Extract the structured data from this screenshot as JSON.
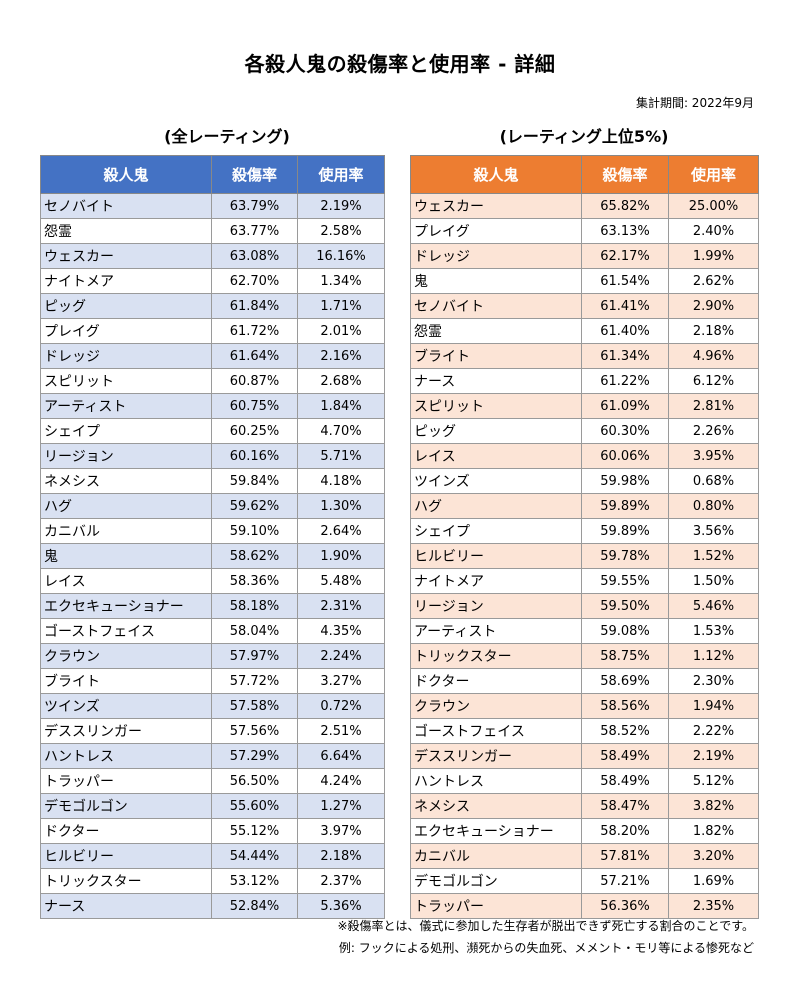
{
  "title": "各殺人鬼の殺傷率と使用率 - 詳細",
  "period": "集計期間: 2022年9月",
  "notes": [
    "※殺傷率とは、儀式に参加した生存者が脱出できず死亡する割合のことです。",
    "例: フックによる処刑、瀕死からの失血死、メメント・モリ等による惨死など"
  ],
  "tables": [
    {
      "subtitle": "(全レーティング)",
      "header_color": "#4472c4",
      "stripe_color": "#d9e1f2",
      "headers": [
        "殺人鬼",
        "殺傷率",
        "使用率"
      ],
      "rows": [
        [
          "セノバイト",
          "63.79%",
          "2.19%"
        ],
        [
          "怨霊",
          "63.77%",
          "2.58%"
        ],
        [
          "ウェスカー",
          "63.08%",
          "16.16%"
        ],
        [
          "ナイトメア",
          "62.70%",
          "1.34%"
        ],
        [
          "ピッグ",
          "61.84%",
          "1.71%"
        ],
        [
          "プレイグ",
          "61.72%",
          "2.01%"
        ],
        [
          "ドレッジ",
          "61.64%",
          "2.16%"
        ],
        [
          "スピリット",
          "60.87%",
          "2.68%"
        ],
        [
          "アーティスト",
          "60.75%",
          "1.84%"
        ],
        [
          "シェイプ",
          "60.25%",
          "4.70%"
        ],
        [
          "リージョン",
          "60.16%",
          "5.71%"
        ],
        [
          "ネメシス",
          "59.84%",
          "4.18%"
        ],
        [
          "ハグ",
          "59.62%",
          "1.30%"
        ],
        [
          "カニバル",
          "59.10%",
          "2.64%"
        ],
        [
          "鬼",
          "58.62%",
          "1.90%"
        ],
        [
          "レイス",
          "58.36%",
          "5.48%"
        ],
        [
          "エクセキューショナー",
          "58.18%",
          "2.31%"
        ],
        [
          "ゴーストフェイス",
          "58.04%",
          "4.35%"
        ],
        [
          "クラウン",
          "57.97%",
          "2.24%"
        ],
        [
          "ブライト",
          "57.72%",
          "3.27%"
        ],
        [
          "ツインズ",
          "57.58%",
          "0.72%"
        ],
        [
          "デススリンガー",
          "57.56%",
          "2.51%"
        ],
        [
          "ハントレス",
          "57.29%",
          "6.64%"
        ],
        [
          "トラッパー",
          "56.50%",
          "4.24%"
        ],
        [
          "デモゴルゴン",
          "55.60%",
          "1.27%"
        ],
        [
          "ドクター",
          "55.12%",
          "3.97%"
        ],
        [
          "ヒルビリー",
          "54.44%",
          "2.18%"
        ],
        [
          "トリックスター",
          "53.12%",
          "2.37%"
        ],
        [
          "ナース",
          "52.84%",
          "5.36%"
        ]
      ]
    },
    {
      "subtitle": "(レーティング上位5%)",
      "header_color": "#ed7d31",
      "stripe_color": "#fce4d6",
      "headers": [
        "殺人鬼",
        "殺傷率",
        "使用率"
      ],
      "rows": [
        [
          "ウェスカー",
          "65.82%",
          "25.00%"
        ],
        [
          "プレイグ",
          "63.13%",
          "2.40%"
        ],
        [
          "ドレッジ",
          "62.17%",
          "1.99%"
        ],
        [
          "鬼",
          "61.54%",
          "2.62%"
        ],
        [
          "セノバイト",
          "61.41%",
          "2.90%"
        ],
        [
          "怨霊",
          "61.40%",
          "2.18%"
        ],
        [
          "ブライト",
          "61.34%",
          "4.96%"
        ],
        [
          "ナース",
          "61.22%",
          "6.12%"
        ],
        [
          "スピリット",
          "61.09%",
          "2.81%"
        ],
        [
          "ピッグ",
          "60.30%",
          "2.26%"
        ],
        [
          "レイス",
          "60.06%",
          "3.95%"
        ],
        [
          "ツインズ",
          "59.98%",
          "0.68%"
        ],
        [
          "ハグ",
          "59.89%",
          "0.80%"
        ],
        [
          "シェイプ",
          "59.89%",
          "3.56%"
        ],
        [
          "ヒルビリー",
          "59.78%",
          "1.52%"
        ],
        [
          "ナイトメア",
          "59.55%",
          "1.50%"
        ],
        [
          "リージョン",
          "59.50%",
          "5.46%"
        ],
        [
          "アーティスト",
          "59.08%",
          "1.53%"
        ],
        [
          "トリックスター",
          "58.75%",
          "1.12%"
        ],
        [
          "ドクター",
          "58.69%",
          "2.30%"
        ],
        [
          "クラウン",
          "58.56%",
          "1.94%"
        ],
        [
          "ゴーストフェイス",
          "58.52%",
          "2.22%"
        ],
        [
          "デススリンガー",
          "58.49%",
          "2.19%"
        ],
        [
          "ハントレス",
          "58.49%",
          "5.12%"
        ],
        [
          "ネメシス",
          "58.47%",
          "3.82%"
        ],
        [
          "エクセキューショナー",
          "58.20%",
          "1.82%"
        ],
        [
          "カニバル",
          "57.81%",
          "3.20%"
        ],
        [
          "デモゴルゴン",
          "57.21%",
          "1.69%"
        ],
        [
          "トラッパー",
          "56.36%",
          "2.35%"
        ]
      ]
    }
  ],
  "chart_data": {
    "type": "table",
    "title": "各殺人鬼の殺傷率と使用率 - 詳細",
    "tables": [
      {
        "name": "(全レーティング)",
        "columns": [
          "殺人鬼",
          "殺傷率",
          "使用率"
        ]
      },
      {
        "name": "(レーティング上位5%)",
        "columns": [
          "殺人鬼",
          "殺傷率",
          "使用率"
        ]
      }
    ]
  }
}
